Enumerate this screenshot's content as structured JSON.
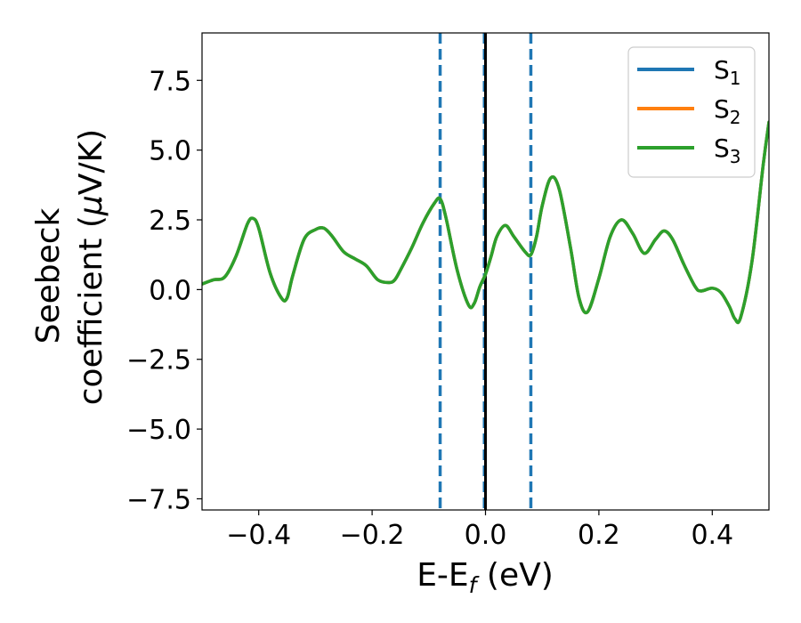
{
  "chart_data": {
    "type": "line",
    "title": "",
    "xlabel": "E-E",
    "xlabel_sub": "f",
    "xlabel_unit": " (eV)",
    "ylabel_line1": "Seebeck",
    "ylabel_line2_text": "coefficient  (",
    "ylabel_mu": "μ",
    "ylabel_unit_tail": "V/K)",
    "xlim": [
      -0.5,
      0.5
    ],
    "ylim": [
      -7.9,
      9.2
    ],
    "xticks": [
      -0.4,
      -0.2,
      0.0,
      0.2,
      0.4
    ],
    "xtick_labels": [
      "−0.4",
      "−0.2",
      "0.0",
      "0.2",
      "0.4"
    ],
    "yticks": [
      -7.5,
      -5.0,
      -2.5,
      0.0,
      2.5,
      5.0,
      7.5
    ],
    "ytick_labels": [
      "−7.5",
      "−5.0",
      "−2.5",
      "0.0",
      "2.5",
      "5.0",
      "7.5"
    ],
    "grid": false,
    "legend_position": "top-right",
    "vlines": [
      {
        "x": -0.08,
        "style": "dashed",
        "color": "#1f77b4"
      },
      {
        "x": 0.08,
        "style": "dashed",
        "color": "#1f77b4"
      },
      {
        "x": -0.002,
        "style": "dashed",
        "color": "#1f77b4"
      },
      {
        "x": 0.0,
        "style": "solid",
        "color": "#000000"
      }
    ],
    "legend": [
      {
        "base": "S",
        "sub": "1",
        "color": "#1f77b4"
      },
      {
        "base": "S",
        "sub": "2",
        "color": "#ff7f0e"
      },
      {
        "base": "S",
        "sub": "3",
        "color": "#2ca02c"
      }
    ],
    "x": [
      -0.5,
      -0.48,
      -0.46,
      -0.44,
      -0.42,
      -0.41,
      -0.4,
      -0.38,
      -0.36,
      -0.35,
      -0.34,
      -0.32,
      -0.3,
      -0.285,
      -0.27,
      -0.25,
      -0.23,
      -0.21,
      -0.19,
      -0.17,
      -0.16,
      -0.15,
      -0.13,
      -0.11,
      -0.09,
      -0.08,
      -0.07,
      -0.05,
      -0.03,
      -0.02,
      -0.01,
      0.0,
      0.01,
      0.02,
      0.035,
      0.05,
      0.07,
      0.08,
      0.09,
      0.1,
      0.115,
      0.13,
      0.15,
      0.165,
      0.18,
      0.2,
      0.22,
      0.24,
      0.26,
      0.28,
      0.3,
      0.315,
      0.33,
      0.35,
      0.37,
      0.38,
      0.4,
      0.415,
      0.43,
      0.44,
      0.45,
      0.47,
      0.49,
      0.5
    ],
    "series": [
      {
        "name": "S1",
        "color": "#1f77b4",
        "y": [
          0.2,
          0.35,
          0.45,
          1.2,
          2.35,
          2.55,
          2.2,
          0.6,
          -0.3,
          -0.3,
          0.5,
          1.8,
          2.15,
          2.2,
          1.9,
          1.35,
          1.1,
          0.85,
          0.35,
          0.25,
          0.35,
          0.7,
          1.5,
          2.4,
          3.1,
          3.25,
          2.6,
          0.7,
          -0.55,
          -0.5,
          0.1,
          0.55,
          1.2,
          1.9,
          2.3,
          1.9,
          1.35,
          1.25,
          1.9,
          3.0,
          4.0,
          3.6,
          1.5,
          -0.3,
          -0.8,
          0.4,
          1.9,
          2.5,
          2.0,
          1.3,
          1.8,
          2.1,
          1.8,
          0.9,
          0.1,
          -0.05,
          0.05,
          -0.1,
          -0.6,
          -1.05,
          -1.0,
          1.0,
          4.5,
          6.0
        ]
      },
      {
        "name": "S2",
        "color": "#ff7f0e",
        "y": [
          0.2,
          0.35,
          0.45,
          1.2,
          2.35,
          2.55,
          2.2,
          0.6,
          -0.3,
          -0.3,
          0.5,
          1.8,
          2.15,
          2.2,
          1.9,
          1.35,
          1.1,
          0.85,
          0.35,
          0.25,
          0.35,
          0.7,
          1.5,
          2.4,
          3.1,
          3.25,
          2.6,
          0.7,
          -0.55,
          -0.5,
          0.1,
          0.55,
          1.2,
          1.9,
          2.3,
          1.9,
          1.35,
          1.25,
          1.9,
          3.0,
          4.0,
          3.6,
          1.5,
          -0.3,
          -0.8,
          0.4,
          1.9,
          2.5,
          2.0,
          1.3,
          1.8,
          2.1,
          1.8,
          0.9,
          0.1,
          -0.05,
          0.05,
          -0.1,
          -0.6,
          -1.05,
          -1.0,
          1.0,
          4.5,
          6.0
        ]
      },
      {
        "name": "S3",
        "color": "#2ca02c",
        "y": [
          0.2,
          0.35,
          0.45,
          1.2,
          2.35,
          2.55,
          2.2,
          0.6,
          -0.3,
          -0.3,
          0.5,
          1.8,
          2.15,
          2.2,
          1.9,
          1.35,
          1.1,
          0.85,
          0.35,
          0.25,
          0.35,
          0.7,
          1.5,
          2.4,
          3.1,
          3.25,
          2.6,
          0.7,
          -0.55,
          -0.5,
          0.1,
          0.55,
          1.2,
          1.9,
          2.3,
          1.9,
          1.35,
          1.25,
          1.9,
          3.0,
          4.0,
          3.6,
          1.5,
          -0.3,
          -0.8,
          0.4,
          1.9,
          2.5,
          2.0,
          1.3,
          1.8,
          2.1,
          1.8,
          0.9,
          0.1,
          -0.05,
          0.05,
          -0.1,
          -0.6,
          -1.05,
          -1.0,
          1.0,
          4.5,
          6.0
        ]
      }
    ]
  }
}
